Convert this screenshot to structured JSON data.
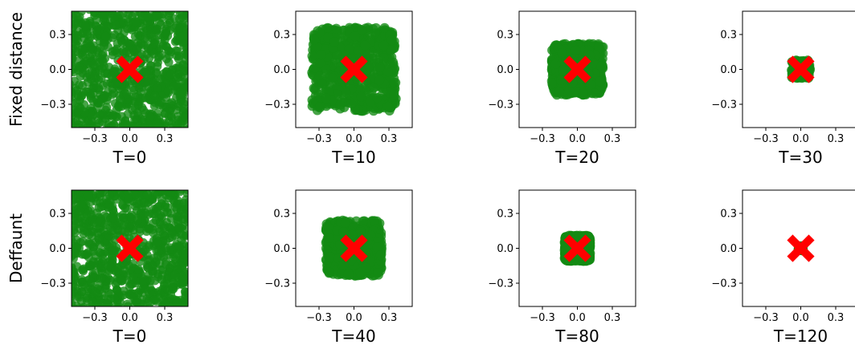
{
  "colors": {
    "point": "#138a13",
    "marker": "#ff0000",
    "axis": "#000000"
  },
  "axis_ticks": {
    "x": [
      {
        "value": -0.3,
        "label": "−0.3"
      },
      {
        "value": 0.0,
        "label": "0.0"
      },
      {
        "value": 0.3,
        "label": "0.3"
      }
    ],
    "y": [
      {
        "value": 0.3,
        "label": "0.3"
      },
      {
        "value": 0.0,
        "label": "0.0"
      },
      {
        "value": -0.3,
        "label": "−0.3"
      }
    ]
  },
  "rows": [
    {
      "label": "Fixed distance"
    },
    {
      "label": "Deffaunt"
    }
  ],
  "chart_data": [
    {
      "type": "scatter",
      "row": 0,
      "col": 0,
      "title": "T=0",
      "xlim": [
        -0.5,
        0.5
      ],
      "ylim": [
        -0.5,
        0.5
      ],
      "spread": 0.5,
      "center": [
        0,
        0
      ],
      "marker": "X"
    },
    {
      "type": "scatter",
      "row": 0,
      "col": 1,
      "title": "T=10",
      "xlim": [
        -0.5,
        0.5
      ],
      "ylim": [
        -0.5,
        0.5
      ],
      "spread": 0.36,
      "center": [
        0,
        0
      ],
      "marker": "X"
    },
    {
      "type": "scatter",
      "row": 0,
      "col": 2,
      "title": "T=20",
      "xlim": [
        -0.5,
        0.5
      ],
      "ylim": [
        -0.5,
        0.5
      ],
      "spread": 0.22,
      "center": [
        0,
        0
      ],
      "marker": "X"
    },
    {
      "type": "scatter",
      "row": 0,
      "col": 3,
      "title": "T=30",
      "xlim": [
        -0.5,
        0.5
      ],
      "ylim": [
        -0.5,
        0.5
      ],
      "spread": 0.08,
      "center": [
        0,
        0
      ],
      "marker": "X"
    },
    {
      "type": "scatter",
      "row": 1,
      "col": 0,
      "title": "T=0",
      "xlim": [
        -0.5,
        0.5
      ],
      "ylim": [
        -0.5,
        0.5
      ],
      "spread": 0.5,
      "center": [
        0,
        0
      ],
      "marker": "X"
    },
    {
      "type": "scatter",
      "row": 1,
      "col": 1,
      "title": "T=40",
      "xlim": [
        -0.5,
        0.5
      ],
      "ylim": [
        -0.5,
        0.5
      ],
      "spread": 0.24,
      "center": [
        0,
        0
      ],
      "marker": "X"
    },
    {
      "type": "scatter",
      "row": 1,
      "col": 2,
      "title": "T=80",
      "xlim": [
        -0.5,
        0.5
      ],
      "ylim": [
        -0.5,
        0.5
      ],
      "spread": 0.11,
      "center": [
        0,
        0
      ],
      "marker": "X"
    },
    {
      "type": "scatter",
      "row": 1,
      "col": 3,
      "title": "T=120",
      "xlim": [
        -0.5,
        0.5
      ],
      "ylim": [
        -0.5,
        0.5
      ],
      "spread": 0.02,
      "center": [
        0,
        0
      ],
      "marker": "X"
    }
  ]
}
